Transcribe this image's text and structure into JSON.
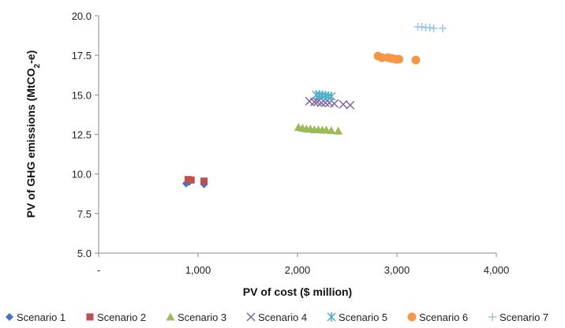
{
  "chart_data": {
    "type": "scatter",
    "title": "",
    "xlabel": "PV of cost ($ million)",
    "ylabel": "PV of GHG emissions (MtCO2-e)",
    "ylabel_parts": {
      "pre": "PV of GHG emissions (MtCO",
      "sub": "2",
      "post": "-e)"
    },
    "xlim": [
      0,
      4000
    ],
    "ylim": [
      5.0,
      20.0
    ],
    "x_ticks": [
      0,
      1000,
      2000,
      3000,
      4000
    ],
    "x_tick_labels": [
      "-",
      "1,000",
      "2,000",
      "3,000",
      "4,000"
    ],
    "y_ticks": [
      5.0,
      7.5,
      10.0,
      12.5,
      15.0,
      17.5,
      20.0
    ],
    "y_tick_labels": [
      "5.0",
      "7.5",
      "10.0",
      "12.5",
      "15.0",
      "17.5",
      "20.0"
    ],
    "grid": false,
    "legend_position": "bottom",
    "series": [
      {
        "name": "Scenario 1",
        "marker": "diamond",
        "color": "#4472c4",
        "points": [
          [
            880,
            9.4
          ],
          [
            910,
            9.5
          ],
          [
            1060,
            9.35
          ]
        ]
      },
      {
        "name": "Scenario 2",
        "marker": "square",
        "color": "#c0504d",
        "points": [
          [
            900,
            9.65
          ],
          [
            930,
            9.62
          ],
          [
            1060,
            9.55
          ]
        ]
      },
      {
        "name": "Scenario 3",
        "marker": "triangle",
        "color": "#9bbb59",
        "points": [
          [
            2010,
            12.95
          ],
          [
            2050,
            12.9
          ],
          [
            2090,
            12.85
          ],
          [
            2130,
            12.85
          ],
          [
            2170,
            12.8
          ],
          [
            2210,
            12.8
          ],
          [
            2250,
            12.78
          ],
          [
            2290,
            12.78
          ],
          [
            2340,
            12.75
          ],
          [
            2410,
            12.72
          ]
        ]
      },
      {
        "name": "Scenario 4",
        "marker": "x",
        "color": "#8064a2",
        "points": [
          [
            2120,
            14.6
          ],
          [
            2170,
            14.55
          ],
          [
            2200,
            14.55
          ],
          [
            2240,
            14.5
          ],
          [
            2280,
            14.5
          ],
          [
            2320,
            14.5
          ],
          [
            2370,
            14.45
          ],
          [
            2460,
            14.4
          ],
          [
            2530,
            14.35
          ]
        ]
      },
      {
        "name": "Scenario 5",
        "marker": "asterisk",
        "color": "#4bacc6",
        "points": [
          [
            2190,
            15.0
          ],
          [
            2220,
            15.0
          ],
          [
            2250,
            14.95
          ],
          [
            2280,
            14.95
          ],
          [
            2310,
            14.9
          ],
          [
            2340,
            14.9
          ]
        ]
      },
      {
        "name": "Scenario 6",
        "marker": "circle",
        "color": "#f79646",
        "points": [
          [
            2810,
            17.45
          ],
          [
            2850,
            17.35
          ],
          [
            2910,
            17.35
          ],
          [
            2950,
            17.3
          ],
          [
            2990,
            17.25
          ],
          [
            3020,
            17.25
          ],
          [
            3190,
            17.2
          ]
        ]
      },
      {
        "name": "Scenario 7",
        "marker": "plus",
        "color": "#9dc3e6",
        "points": [
          [
            3210,
            19.3
          ],
          [
            3250,
            19.3
          ],
          [
            3290,
            19.25
          ],
          [
            3330,
            19.25
          ],
          [
            3370,
            19.2
          ],
          [
            3460,
            19.2
          ]
        ]
      }
    ]
  }
}
